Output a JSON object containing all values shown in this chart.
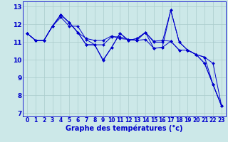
{
  "background_color": "#cce8e8",
  "grid_color": "#aacccc",
  "line_color": "#0000cc",
  "xlabel": "Graphe des températures (°c)",
  "xlabel_fontsize": 7,
  "ytick_fontsize": 6.5,
  "xtick_fontsize": 5.5,
  "yticks": [
    7,
    8,
    9,
    10,
    11,
    12,
    13
  ],
  "xtick_labels": [
    "0",
    "1",
    "2",
    "3",
    "4",
    "5",
    "6",
    "7",
    "8",
    "9",
    "10",
    "11",
    "12",
    "13",
    "14",
    "15",
    "16",
    "17",
    "18",
    "19",
    "20",
    "21",
    "22",
    "23"
  ],
  "ylim": [
    6.8,
    13.3
  ],
  "xlim": [
    -0.5,
    23.5
  ],
  "series": [
    [
      11.5,
      11.1,
      11.1,
      11.9,
      12.4,
      11.9,
      11.9,
      11.15,
      10.85,
      10.85,
      11.3,
      11.3,
      11.15,
      11.1,
      11.55,
      11.0,
      11.0,
      12.8,
      11.0,
      10.55,
      10.3,
      10.15,
      8.6,
      7.4
    ],
    [
      11.5,
      11.1,
      11.1,
      11.9,
      12.55,
      12.1,
      11.55,
      11.2,
      11.1,
      11.1,
      11.35,
      11.2,
      11.15,
      11.1,
      11.15,
      10.65,
      10.7,
      11.05,
      10.55,
      10.55,
      10.3,
      9.8,
      8.6,
      7.4
    ],
    [
      11.5,
      11.1,
      11.1,
      11.9,
      12.55,
      12.1,
      11.55,
      10.85,
      10.85,
      10.0,
      10.7,
      11.5,
      11.1,
      11.2,
      11.55,
      10.65,
      10.7,
      12.8,
      11.0,
      10.55,
      10.3,
      10.15,
      9.8,
      7.4
    ],
    [
      11.5,
      11.1,
      11.1,
      11.9,
      12.55,
      12.1,
      11.55,
      10.85,
      10.85,
      9.95,
      10.7,
      11.5,
      11.1,
      11.2,
      11.55,
      11.05,
      11.1,
      11.05,
      10.55,
      10.55,
      10.3,
      9.8,
      8.6,
      7.4
    ]
  ]
}
